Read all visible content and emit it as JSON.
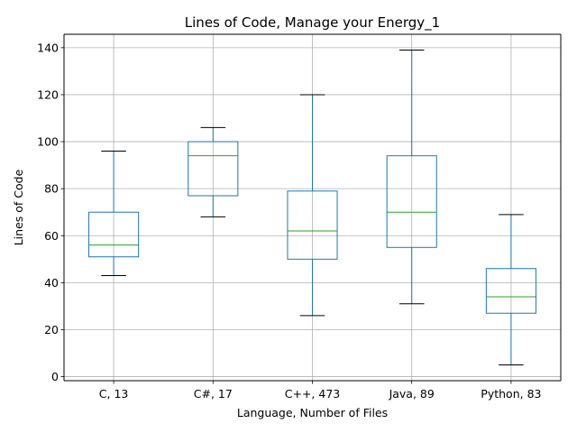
{
  "chart_data": {
    "type": "box",
    "title": "Lines of Code, Manage your Energy_1",
    "xlabel": "Language, Number of Files",
    "ylabel": "Lines of Code",
    "ylim": [
      -1.7,
      145.7
    ],
    "yticks": [
      0,
      20,
      40,
      60,
      80,
      100,
      120,
      140
    ],
    "ytick_labels": [
      "0",
      "20",
      "40",
      "60",
      "80",
      "100",
      "120",
      "140"
    ],
    "grid": true,
    "legend": "none",
    "colors": {
      "box": "#1f77b4",
      "median": "#2ca02c",
      "whisker_cap": "#000000",
      "grid": "#b0b0b0"
    },
    "categories": [
      "C, 13",
      "C#, 17",
      "C++, 473",
      "Java, 89",
      "Python, 83"
    ],
    "boxes": [
      {
        "whisker_low": 43,
        "q1": 51,
        "median": 56,
        "q3": 70,
        "whisker_high": 96
      },
      {
        "whisker_low": 68,
        "q1": 77,
        "median": 94,
        "q3": 100,
        "whisker_high": 106
      },
      {
        "whisker_low": 26,
        "q1": 50,
        "median": 62,
        "q3": 79,
        "whisker_high": 120
      },
      {
        "whisker_low": 31,
        "q1": 55,
        "median": 70,
        "q3": 94,
        "whisker_high": 139
      },
      {
        "whisker_low": 5,
        "q1": 27,
        "median": 34,
        "q3": 46,
        "whisker_high": 69
      }
    ]
  }
}
